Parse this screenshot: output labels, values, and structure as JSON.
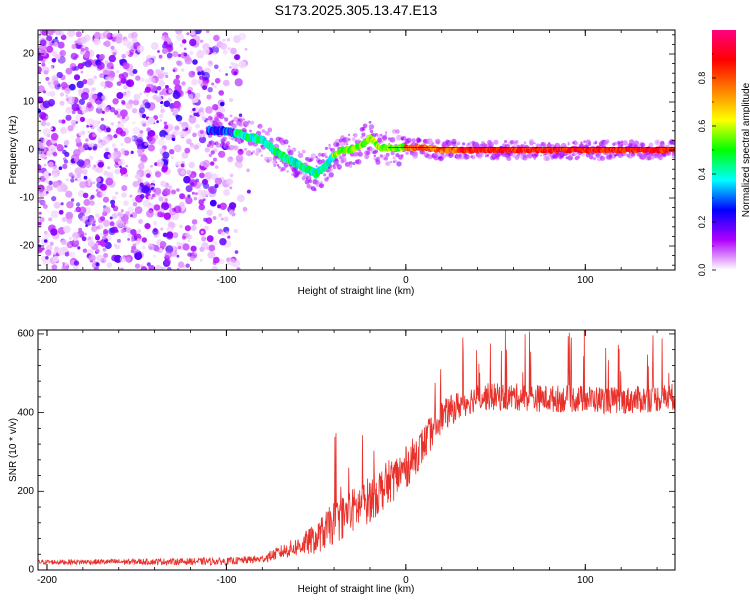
{
  "title": "S173.2025.305.13.47.E13",
  "chart_data": [
    {
      "type": "heatmap",
      "title": "S173.2025.305.13.47.E13",
      "xlabel": "Height of straight line (km)",
      "ylabel": "Frequency (Hz)",
      "xlim": [
        -205,
        150
      ],
      "ylim": [
        -25,
        25
      ],
      "x_ticks": [
        -200,
        -100,
        0,
        100
      ],
      "y_ticks": [
        -20,
        -10,
        0,
        10,
        20
      ],
      "colorbar": {
        "label": "Normalized spectral amplitude",
        "range": [
          0,
          1
        ],
        "ticks": [
          "0.0",
          "0.2",
          "0.4",
          "0.6",
          "0.8"
        ],
        "colors": [
          "#ffffff",
          "#b000ff",
          "#0000ff",
          "#00ffff",
          "#00ff00",
          "#ffff00",
          "#ff8000",
          "#ff0000",
          "#ff0080"
        ]
      },
      "ridge": {
        "x": [
          -110,
          -100,
          -90,
          -80,
          -70,
          -60,
          -50,
          -45,
          -40,
          -35,
          -30,
          -25,
          -20,
          -18,
          -15,
          -10,
          0,
          10,
          20,
          40,
          60,
          100,
          150
        ],
        "y": [
          4,
          4,
          3,
          2,
          -1,
          -3,
          -5,
          -3.5,
          -1,
          0,
          0,
          1,
          2.5,
          2,
          0.5,
          0.5,
          0.5,
          0.5,
          0,
          0,
          0,
          0,
          0
        ]
      },
      "noise_region_x": [
        -205,
        -85
      ]
    },
    {
      "type": "line",
      "xlabel": "Height of straight line (km)",
      "ylabel": "SNR (10 * v/v)",
      "xlim": [
        -205,
        150
      ],
      "ylim": [
        0,
        610
      ],
      "x_ticks": [
        -200,
        -100,
        0,
        100
      ],
      "y_ticks": [
        0,
        200,
        400,
        600
      ],
      "series": [
        {
          "name": "SNR",
          "color": "#e8312b",
          "trend_x": [
            -205,
            -100,
            -80,
            -70,
            -60,
            -50,
            -40,
            -30,
            -20,
            -10,
            0,
            10,
            20,
            30,
            40,
            60,
            80,
            100,
            120,
            150
          ],
          "trend_y": [
            20,
            22,
            28,
            45,
            60,
            80,
            120,
            150,
            180,
            220,
            260,
            320,
            390,
            420,
            440,
            440,
            435,
            435,
            430,
            440
          ],
          "noise_x": [
            -205,
            -80,
            -60,
            -40,
            -20,
            0,
            20,
            40,
            100,
            150
          ],
          "noise_y": [
            6,
            10,
            25,
            55,
            60,
            55,
            40,
            35,
            35,
            35
          ]
        }
      ]
    }
  ]
}
